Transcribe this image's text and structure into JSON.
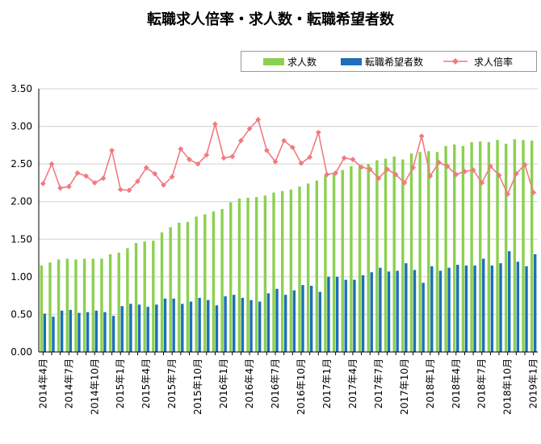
{
  "chart_data": {
    "type": "bar+line",
    "title": "転職求人倍率・求人数・転職希望者数",
    "ylim": [
      0,
      3.5
    ],
    "yticks": [
      "0.00",
      "0.50",
      "1.00",
      "1.50",
      "2.00",
      "2.50",
      "3.00",
      "3.50"
    ],
    "ytick_values": [
      0,
      0.5,
      1,
      1.5,
      2,
      2.5,
      3,
      3.5
    ],
    "grid": true,
    "legend_position": "top-right",
    "categories": [
      "2014年4月",
      "2014年5月",
      "2014年6月",
      "2014年7月",
      "2014年8月",
      "2014年9月",
      "2014年10月",
      "2014年11月",
      "2014年12月",
      "2015年1月",
      "2015年2月",
      "2015年3月",
      "2015年4月",
      "2015年5月",
      "2015年6月",
      "2015年7月",
      "2015年8月",
      "2015年9月",
      "2015年10月",
      "2015年11月",
      "2015年12月",
      "2016年1月",
      "2016年2月",
      "2016年3月",
      "2016年4月",
      "2016年5月",
      "2016年6月",
      "2016年7月",
      "2016年8月",
      "2016年9月",
      "2016年10月",
      "2016年11月",
      "2016年12月",
      "2017年1月",
      "2017年2月",
      "2017年3月",
      "2017年4月",
      "2017年5月",
      "2017年6月",
      "2017年7月",
      "2017年8月",
      "2017年9月",
      "2017年10月",
      "2017年11月",
      "2017年12月",
      "2018年1月",
      "2018年2月",
      "2018年3月",
      "2018年4月",
      "2018年5月",
      "2018年6月",
      "2018年7月",
      "2018年8月",
      "2018年9月",
      "2018年10月",
      "2018年11月",
      "2018年12月",
      "2019年1月"
    ],
    "xtick_labels": {
      "0": "2014年4月",
      "3": "2014年7月",
      "6": "2014年10月",
      "9": "2015年1月",
      "12": "2015年4月",
      "15": "2015年7月",
      "18": "2015年10月",
      "21": "2016年1月",
      "24": "2016年4月",
      "27": "2016年7月",
      "30": "2016年10月",
      "33": "2017年1月",
      "36": "2017年4月",
      "39": "2017年7月",
      "42": "2017年10月",
      "45": "2018年1月",
      "48": "2018年4月",
      "51": "2018年7月",
      "54": "2018年10月",
      "57": "2019年1月"
    },
    "series": [
      {
        "name": "求人数",
        "type": "bar",
        "color": "#8cd050",
        "values": [
          1.15,
          1.19,
          1.23,
          1.24,
          1.23,
          1.24,
          1.24,
          1.24,
          1.3,
          1.32,
          1.38,
          1.45,
          1.47,
          1.48,
          1.59,
          1.66,
          1.72,
          1.73,
          1.8,
          1.83,
          1.87,
          1.9,
          1.99,
          2.04,
          2.05,
          2.06,
          2.08,
          2.12,
          2.14,
          2.16,
          2.2,
          2.24,
          2.28,
          2.35,
          2.38,
          2.42,
          2.47,
          2.48,
          2.5,
          2.55,
          2.57,
          2.6,
          2.56,
          2.64,
          2.66,
          2.67,
          2.66,
          2.74,
          2.76,
          2.74,
          2.79,
          2.8,
          2.79,
          2.82,
          2.77,
          2.83,
          2.82,
          2.81
        ]
      },
      {
        "name": "転職希望者数",
        "type": "bar",
        "color": "#1d6fb8",
        "values": [
          0.51,
          0.47,
          0.55,
          0.56,
          0.52,
          0.53,
          0.55,
          0.53,
          0.48,
          0.61,
          0.64,
          0.63,
          0.6,
          0.63,
          0.71,
          0.71,
          0.64,
          0.67,
          0.72,
          0.69,
          0.62,
          0.74,
          0.76,
          0.72,
          0.69,
          0.67,
          0.78,
          0.84,
          0.76,
          0.82,
          0.89,
          0.88,
          0.8,
          1.0,
          1.0,
          0.96,
          0.96,
          1.02,
          1.06,
          1.12,
          1.07,
          1.08,
          1.18,
          1.09,
          0.92,
          1.14,
          1.08,
          1.12,
          1.16,
          1.15,
          1.15,
          1.24,
          1.15,
          1.18,
          1.34,
          1.2,
          1.14,
          1.3
        ]
      },
      {
        "name": "求人倍率",
        "type": "line",
        "color": "#f07b80",
        "values": [
          2.24,
          2.5,
          2.18,
          2.2,
          2.38,
          2.34,
          2.25,
          2.31,
          2.68,
          2.16,
          2.15,
          2.27,
          2.45,
          2.37,
          2.22,
          2.33,
          2.7,
          2.56,
          2.5,
          2.62,
          3.03,
          2.58,
          2.6,
          2.81,
          2.97,
          3.09,
          2.68,
          2.53,
          2.81,
          2.72,
          2.51,
          2.59,
          2.92,
          2.36,
          2.38,
          2.58,
          2.56,
          2.46,
          2.43,
          2.31,
          2.43,
          2.36,
          2.25,
          2.45,
          2.87,
          2.34,
          2.52,
          2.47,
          2.36,
          2.4,
          2.42,
          2.25,
          2.47,
          2.35,
          2.1,
          2.37,
          2.49,
          2.12
        ]
      }
    ]
  }
}
